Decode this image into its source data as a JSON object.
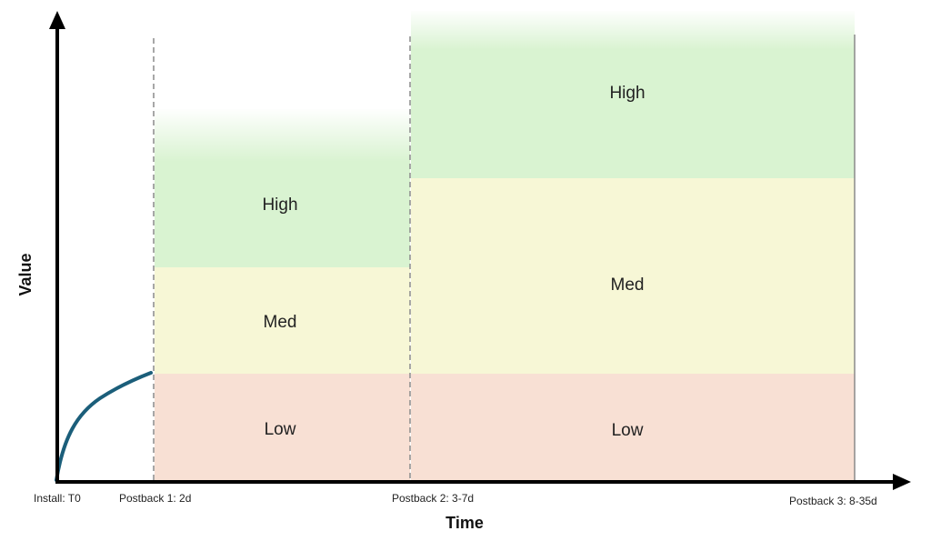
{
  "axes": {
    "x_title": "Time",
    "y_title": "Value"
  },
  "timeline": {
    "ticks": [
      "Install: T0",
      "Postback 1: 2d",
      "Postback 2: 3-7d",
      "Postback 3: 8-35d"
    ]
  },
  "windows": [
    {
      "bands": [
        "Low",
        "Med",
        "High"
      ]
    },
    {
      "bands": [
        "Low",
        "Med",
        "High"
      ]
    }
  ],
  "colors": {
    "axis": "#000000",
    "curve": "#1b5e7a",
    "divider": "#8a8a8a",
    "low": "#f8e0d4",
    "med": "#f7f7d6",
    "high": "#d9f3d1"
  }
}
